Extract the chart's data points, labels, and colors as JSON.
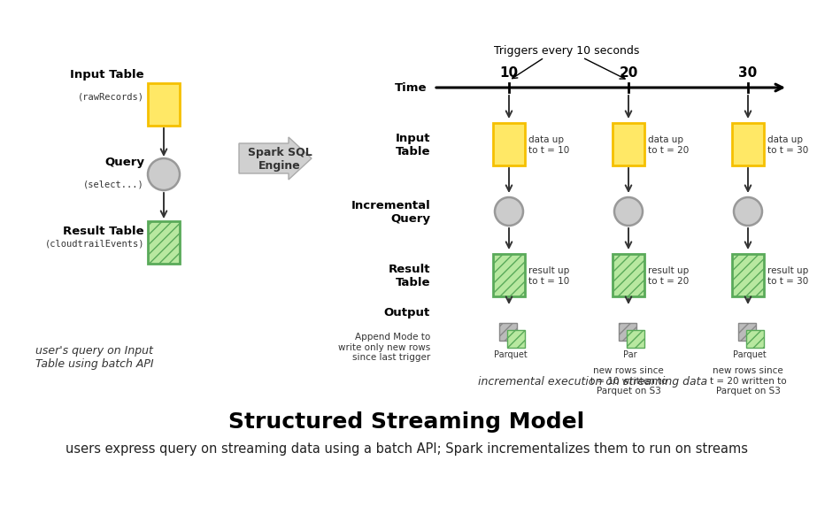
{
  "title": "Structured Streaming Model",
  "subtitle": "users express query on streaming data using a batch API; Spark incrementalizes them to run on streams",
  "left_label1": "Input Table",
  "left_label1b": "(rawRecords)",
  "left_label2": "Query",
  "left_label2b": "(select...)",
  "left_label3": "Result Table",
  "left_label3b": "(cloudtrailEvents)",
  "spark_label": "Spark SQL\nEngine",
  "trigger_label": "Triggers every 10 seconds",
  "time_marks": [
    "10",
    "20",
    "30"
  ],
  "right_row1": "Input\nTable",
  "right_row2": "Incremental\nQuery",
  "right_row3": "Result\nTable",
  "right_row4": "Output",
  "output_desc": "Append Mode to\nwrite only new rows\nsince last trigger",
  "data_labels": [
    "data up\nto t = 10",
    "data up\nto t = 20",
    "data up\nto t = 30"
  ],
  "result_labels": [
    "result up\nto t = 10",
    "result up\nto t = 20",
    "result up\nto t = 30"
  ],
  "parquet_labels": [
    "Parquet",
    "Par",
    "Parquet"
  ],
  "output_labels2": [
    "new rows since\nt = 10 written to\nParquet on S3",
    "new rows since\nt = 20 written to\nParquet on S3"
  ],
  "yellow_border": "#F5C000",
  "yellow_fill": "#FFE866",
  "green_border": "#5aaa5a",
  "green_fill": "#b8e8a0",
  "gray_border": "#999999",
  "gray_fill": "#cccccc",
  "arrow_color": "#333333",
  "bg_color": "#FFFFFF",
  "title_fontsize": 18,
  "subtitle_fontsize": 10.5,
  "label_fontsize": 9.5,
  "small_fontsize": 8
}
